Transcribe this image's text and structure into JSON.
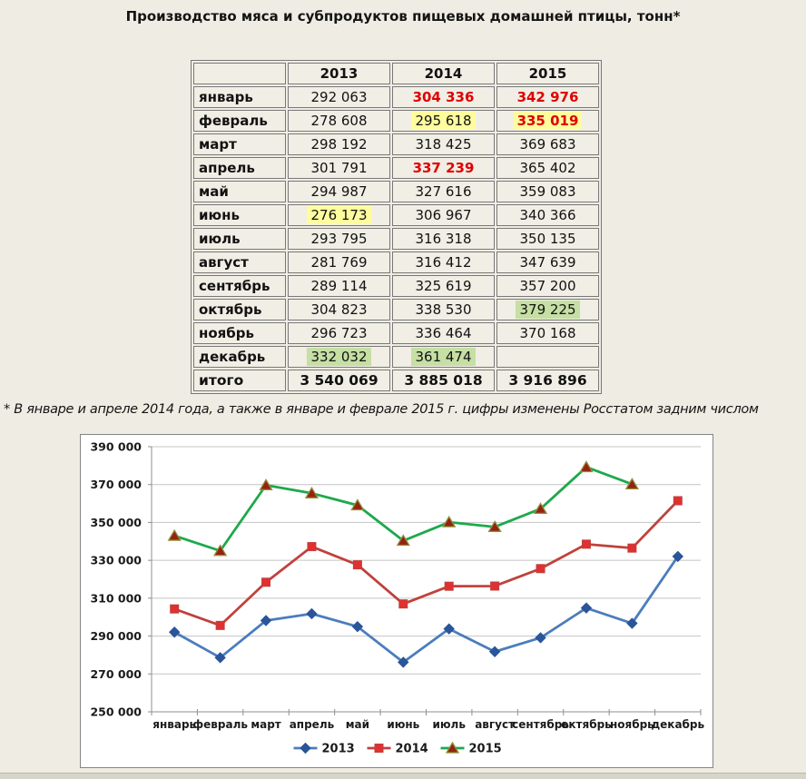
{
  "title": "Производство мяса и субпродуктов пищевых домашней птицы, тонн*",
  "footnote": "* В январе и апреле 2014 года, а также в январе и феврале 2015 г. цифры изменены Росстатом задним числом",
  "colors": {
    "red_text": "#e00000",
    "highlight_yellow": "#fffc9e",
    "highlight_green": "#c6dfa4",
    "page_bg": "#efece3",
    "cell_bg": "#f1eee5"
  },
  "table": {
    "columns": [
      "",
      "2013",
      "2014",
      "2015"
    ],
    "rows": [
      {
        "label": "январь",
        "cells": [
          {
            "t": "292 063"
          },
          {
            "t": "304 336",
            "s": "red"
          },
          {
            "t": "342 976",
            "s": "red"
          }
        ]
      },
      {
        "label": "февраль",
        "cells": [
          {
            "t": "278 608"
          },
          {
            "t": "295 618",
            "s": "yellow"
          },
          {
            "t": "335 019",
            "s": "red yellow"
          }
        ]
      },
      {
        "label": "март",
        "cells": [
          {
            "t": "298 192"
          },
          {
            "t": "318 425"
          },
          {
            "t": "369 683"
          }
        ]
      },
      {
        "label": "апрель",
        "cells": [
          {
            "t": "301 791"
          },
          {
            "t": "337 239",
            "s": "red"
          },
          {
            "t": "365 402"
          }
        ]
      },
      {
        "label": "май",
        "cells": [
          {
            "t": "294 987"
          },
          {
            "t": "327 616"
          },
          {
            "t": "359 083"
          }
        ]
      },
      {
        "label": "июнь",
        "cells": [
          {
            "t": "276 173",
            "s": "yellow"
          },
          {
            "t": "306 967"
          },
          {
            "t": "340 366"
          }
        ]
      },
      {
        "label": "июль",
        "cells": [
          {
            "t": "293 795"
          },
          {
            "t": "316 318"
          },
          {
            "t": "350 135"
          }
        ]
      },
      {
        "label": "август",
        "cells": [
          {
            "t": "281 769"
          },
          {
            "t": "316 412"
          },
          {
            "t": "347 639"
          }
        ]
      },
      {
        "label": "сентябрь",
        "cells": [
          {
            "t": "289 114"
          },
          {
            "t": "325 619"
          },
          {
            "t": "357 200"
          }
        ]
      },
      {
        "label": "октябрь",
        "cells": [
          {
            "t": "304 823"
          },
          {
            "t": "338 530"
          },
          {
            "t": "379 225",
            "s": "green"
          }
        ]
      },
      {
        "label": "ноябрь",
        "cells": [
          {
            "t": "296 723"
          },
          {
            "t": "336 464"
          },
          {
            "t": "370 168"
          }
        ]
      },
      {
        "label": "декабрь",
        "cells": [
          {
            "t": "332 032",
            "s": "green"
          },
          {
            "t": "361 474",
            "s": "green"
          },
          {
            "t": ""
          }
        ]
      },
      {
        "label": "итого",
        "bold": true,
        "cells": [
          {
            "t": "3 540 069"
          },
          {
            "t": "3 885 018"
          },
          {
            "t": "3 916 896"
          }
        ]
      }
    ]
  },
  "chart_data": {
    "type": "line",
    "title": "",
    "xlabel": "",
    "ylabel": "",
    "categories": [
      "январь",
      "февраль",
      "март",
      "апрель",
      "май",
      "июнь",
      "июль",
      "август",
      "сентябрь",
      "октябрь",
      "ноябрь",
      "декабрь"
    ],
    "series": [
      {
        "name": "2013",
        "color": "#4b7dbd",
        "marker": "diamond",
        "marker_fill": "#2a5599",
        "marker_stroke": "#2a5599",
        "values": [
          292063,
          278608,
          298192,
          301791,
          294987,
          276173,
          293795,
          281769,
          289114,
          304823,
          296723,
          332032
        ]
      },
      {
        "name": "2014",
        "color": "#c0413c",
        "marker": "square",
        "marker_fill": "#e03030",
        "marker_stroke": "#c0413c",
        "values": [
          304336,
          295618,
          318425,
          337239,
          327616,
          306967,
          316318,
          316412,
          325619,
          338530,
          336464,
          361474
        ]
      },
      {
        "name": "2015",
        "color": "#1da94c",
        "marker": "triangle",
        "marker_fill": "#96220f",
        "marker_stroke": "#8f8f3d",
        "values": [
          342976,
          335019,
          369683,
          365402,
          359083,
          340366,
          350135,
          347639,
          357200,
          379225,
          370168,
          null
        ]
      }
    ],
    "ylim": [
      250000,
      390000
    ],
    "yticks": [
      250000,
      270000,
      290000,
      310000,
      330000,
      350000,
      370000,
      390000
    ],
    "grid": true,
    "legend_position": "bottom"
  }
}
